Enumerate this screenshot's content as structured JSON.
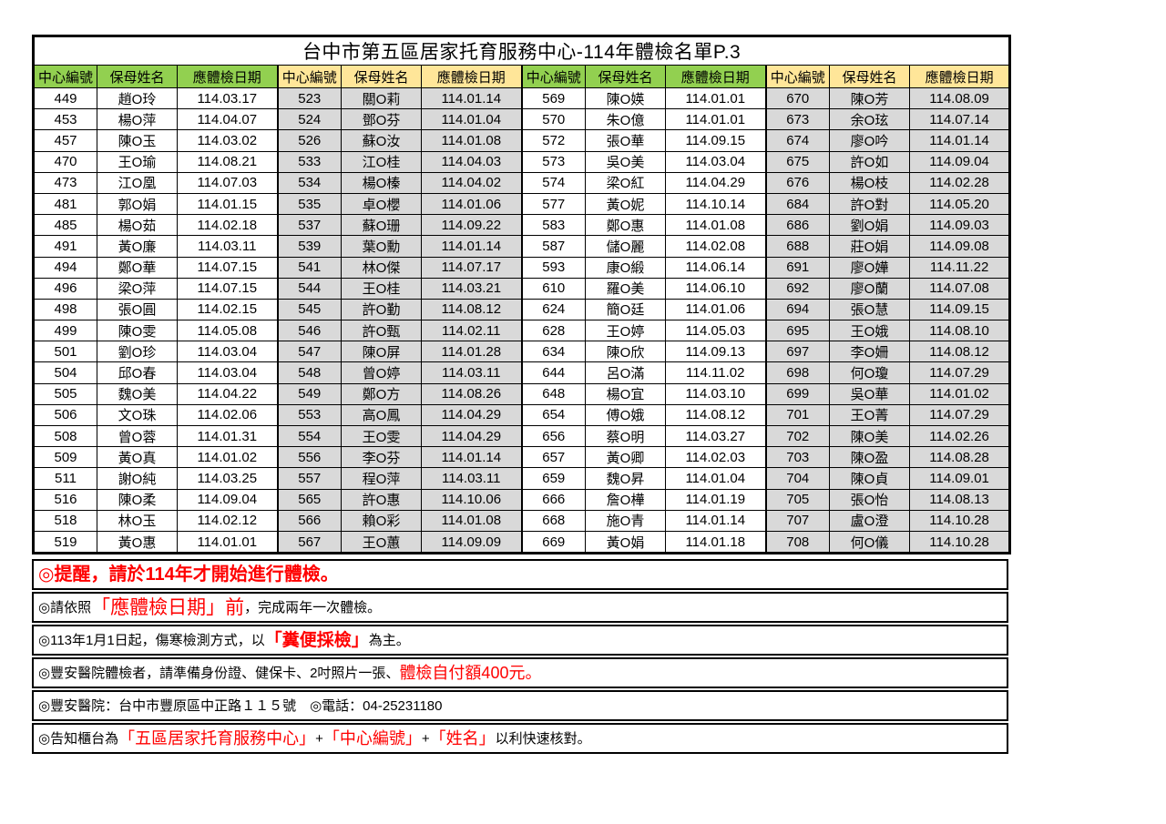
{
  "title": "台中市第五區居家托育服務中心-114年體檢名單P.3",
  "colors": {
    "header_green": "#92D050",
    "header_yellow": "#FFE699",
    "row_gray": "#D9D9D9",
    "row_white": "#FFFFFF",
    "note_red": "#FF0000",
    "border": "#000000"
  },
  "table": {
    "column_headers": [
      "中心編號",
      "保母姓名",
      "應體檢日期"
    ],
    "groups": [
      {
        "header_style": "green",
        "row_style": "white",
        "rows": [
          [
            "449",
            "趙O玲",
            "114.03.17"
          ],
          [
            "453",
            "楊O萍",
            "114.04.07"
          ],
          [
            "457",
            "陳O玉",
            "114.03.02"
          ],
          [
            "470",
            "王O瑜",
            "114.08.21"
          ],
          [
            "473",
            "江O凰",
            "114.07.03"
          ],
          [
            "481",
            "郭O娟",
            "114.01.15"
          ],
          [
            "485",
            "楊O茹",
            "114.02.18"
          ],
          [
            "491",
            "黃O廉",
            "114.03.11"
          ],
          [
            "494",
            "鄭O華",
            "114.07.15"
          ],
          [
            "496",
            "梁O萍",
            "114.07.15"
          ],
          [
            "498",
            "張O圓",
            "114.02.15"
          ],
          [
            "499",
            "陳O雯",
            "114.05.08"
          ],
          [
            "501",
            "劉O珍",
            "114.03.04"
          ],
          [
            "504",
            "邱O春",
            "114.03.04"
          ],
          [
            "505",
            "魏O美",
            "114.04.22"
          ],
          [
            "506",
            "文O珠",
            "114.02.06"
          ],
          [
            "508",
            "曾O蓉",
            "114.01.31"
          ],
          [
            "509",
            "黃O真",
            "114.01.02"
          ],
          [
            "511",
            "謝O純",
            "114.03.25"
          ],
          [
            "516",
            "陳O柔",
            "114.09.04"
          ],
          [
            "518",
            "林O玉",
            "114.02.12"
          ],
          [
            "519",
            "黃O惠",
            "114.01.01"
          ]
        ]
      },
      {
        "header_style": "yellow",
        "row_style": "gray",
        "rows": [
          [
            "523",
            "關O莉",
            "114.01.14"
          ],
          [
            "524",
            "鄧O芬",
            "114.01.04"
          ],
          [
            "526",
            "蘇O汝",
            "114.01.08"
          ],
          [
            "533",
            "江O桂",
            "114.04.03"
          ],
          [
            "534",
            "楊O榛",
            "114.04.02"
          ],
          [
            "535",
            "卓O櫻",
            "114.01.06"
          ],
          [
            "537",
            "蘇O珊",
            "114.09.22"
          ],
          [
            "539",
            "葉O勳",
            "114.01.14"
          ],
          [
            "541",
            "林O傑",
            "114.07.17"
          ],
          [
            "544",
            "王O桂",
            "114.03.21"
          ],
          [
            "545",
            "許O勤",
            "114.08.12"
          ],
          [
            "546",
            "許O甄",
            "114.02.11"
          ],
          [
            "547",
            "陳O屏",
            "114.01.28"
          ],
          [
            "548",
            "曾O婷",
            "114.03.11"
          ],
          [
            "549",
            "鄭O方",
            "114.08.26"
          ],
          [
            "553",
            "高O鳳",
            "114.04.29"
          ],
          [
            "554",
            "王O雯",
            "114.04.29"
          ],
          [
            "556",
            "李O芬",
            "114.01.14"
          ],
          [
            "557",
            "程O萍",
            "114.03.11"
          ],
          [
            "565",
            "許O惠",
            "114.10.06"
          ],
          [
            "566",
            "賴O彩",
            "114.01.08"
          ],
          [
            "567",
            "王O蕙",
            "114.09.09"
          ]
        ]
      },
      {
        "header_style": "green",
        "row_style": "white",
        "rows": [
          [
            "569",
            "陳O媖",
            "114.01.01"
          ],
          [
            "570",
            "朱O億",
            "114.01.01"
          ],
          [
            "572",
            "張O華",
            "114.09.15"
          ],
          [
            "573",
            "吳O美",
            "114.03.04"
          ],
          [
            "574",
            "梁O紅",
            "114.04.29"
          ],
          [
            "577",
            "黃O妮",
            "114.10.14"
          ],
          [
            "583",
            "鄭O惠",
            "114.01.08"
          ],
          [
            "587",
            "儲O麗",
            "114.02.08"
          ],
          [
            "593",
            "康O緞",
            "114.06.14"
          ],
          [
            "610",
            "羅O美",
            "114.06.10"
          ],
          [
            "624",
            "簡O廷",
            "114.01.06"
          ],
          [
            "628",
            "王O婷",
            "114.05.03"
          ],
          [
            "634",
            "陳O欣",
            "114.09.13"
          ],
          [
            "644",
            "呂O滿",
            "114.11.02"
          ],
          [
            "648",
            "楊O宜",
            "114.03.10"
          ],
          [
            "654",
            "傅O娥",
            "114.08.12"
          ],
          [
            "656",
            "蔡O明",
            "114.03.27"
          ],
          [
            "657",
            "黃O卿",
            "114.02.03"
          ],
          [
            "659",
            "魏O昇",
            "114.01.04"
          ],
          [
            "666",
            "詹O樺",
            "114.01.19"
          ],
          [
            "668",
            "施O青",
            "114.01.14"
          ],
          [
            "669",
            "黃O娟",
            "114.01.18"
          ]
        ]
      },
      {
        "header_style": "yellow",
        "row_style": "gray",
        "rows": [
          [
            "670",
            "陳O芳",
            "114.08.09"
          ],
          [
            "673",
            "余O玹",
            "114.07.14"
          ],
          [
            "674",
            "廖O吟",
            "114.01.14"
          ],
          [
            "675",
            "許O如",
            "114.09.04"
          ],
          [
            "676",
            "楊O枝",
            "114.02.28"
          ],
          [
            "684",
            "許O對",
            "114.05.20"
          ],
          [
            "686",
            "劉O娟",
            "114.09.03"
          ],
          [
            "688",
            "莊O娟",
            "114.09.08"
          ],
          [
            "691",
            "廖O嬅",
            "114.11.22"
          ],
          [
            "692",
            "廖O蘭",
            "114.07.08"
          ],
          [
            "694",
            "張O慧",
            "114.09.15"
          ],
          [
            "695",
            "王O娥",
            "114.08.10"
          ],
          [
            "697",
            "李O姍",
            "114.08.12"
          ],
          [
            "698",
            "何O瓊",
            "114.07.29"
          ],
          [
            "699",
            "吳O華",
            "114.01.02"
          ],
          [
            "701",
            "王O菁",
            "114.07.29"
          ],
          [
            "702",
            "陳O美",
            "114.02.26"
          ],
          [
            "703",
            "陳O盈",
            "114.08.28"
          ],
          [
            "704",
            "陳O貞",
            "114.09.01"
          ],
          [
            "705",
            "張O怡",
            "114.08.13"
          ],
          [
            "707",
            "盧O澄",
            "114.10.28"
          ],
          [
            "708",
            "何O儀",
            "114.10.28"
          ]
        ]
      }
    ]
  },
  "notes": [
    {
      "name": "note-reminder",
      "segments": [
        {
          "text": "◎提醒，請於114年才開始進行體檢。",
          "style": "red-bold-xl"
        }
      ]
    },
    {
      "name": "note-due-date",
      "segments": [
        {
          "text": "◎請依照",
          "style": "black"
        },
        {
          "text": "「應體檢日期」前",
          "style": "red-xl"
        },
        {
          "text": "，完成兩年一次體檢。",
          "style": "black"
        }
      ]
    },
    {
      "name": "note-stool-test",
      "segments": [
        {
          "text": "◎113年1月1日起，傷寒檢測方式，以",
          "style": "black"
        },
        {
          "text": "「糞便採檢」",
          "style": "red-bold-lg"
        },
        {
          "text": "為主。",
          "style": "black"
        }
      ]
    },
    {
      "name": "note-hospital-items",
      "segments": [
        {
          "text": "◎豐安醫院體檢者，請準備身份證、健保卡、2吋照片一張、",
          "style": "black"
        },
        {
          "text": "體檢自付額400元。",
          "style": "red-lg"
        }
      ]
    },
    {
      "name": "note-hospital-address",
      "segments": [
        {
          "text": "◎豐安醫院：台中市豐原區中正路１１５號　◎電話：04-25231180",
          "style": "black"
        }
      ]
    },
    {
      "name": "note-counter-info",
      "segments": [
        {
          "text": "◎告知櫃台為",
          "style": "black"
        },
        {
          "text": "「五區居家托育服務中心」",
          "style": "red-lg"
        },
        {
          "text": "+",
          "style": "black"
        },
        {
          "text": "「中心編號」",
          "style": "red-lg"
        },
        {
          "text": "+",
          "style": "black"
        },
        {
          "text": "「姓名」",
          "style": "red-lg"
        },
        {
          "text": "以利快速核對。",
          "style": "black"
        }
      ]
    }
  ]
}
